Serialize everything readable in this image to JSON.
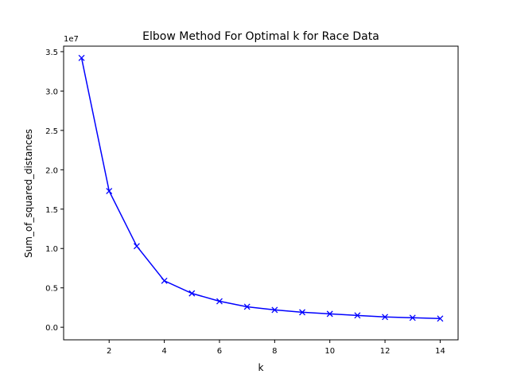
{
  "chart_data": {
    "type": "line",
    "title": "Elbow Method For Optimal k for Race Data",
    "xlabel": "k",
    "ylabel": "Sum_of_squared_distances",
    "y_offset_label": "1e7",
    "xlim": [
      0.35,
      14.65
    ],
    "ylim": [
      -0.16,
      3.57
    ],
    "x_ticks": [
      2,
      4,
      6,
      8,
      10,
      12,
      14
    ],
    "y_ticks": [
      0.0,
      0.5,
      1.0,
      1.5,
      2.0,
      2.5,
      3.0,
      3.5
    ],
    "y_tick_labels": [
      "0.0",
      "0.5",
      "1.0",
      "1.5",
      "2.0",
      "2.5",
      "3.0",
      "3.5"
    ],
    "grid": false,
    "marker": "x",
    "color": "#0000ff",
    "series": [
      {
        "x": [
          1,
          2,
          3,
          4,
          5,
          6,
          7,
          8,
          9,
          10,
          11,
          12,
          13,
          14
        ],
        "values": [
          3.42,
          1.73,
          1.03,
          0.59,
          0.43,
          0.33,
          0.26,
          0.22,
          0.19,
          0.17,
          0.15,
          0.13,
          0.12,
          0.11
        ]
      }
    ]
  }
}
